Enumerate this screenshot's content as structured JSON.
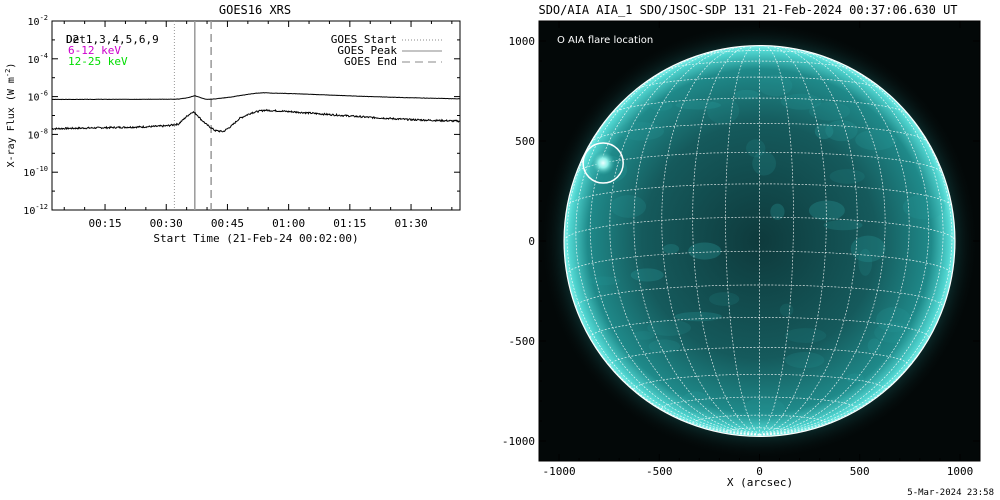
{
  "chart_data": [
    {
      "type": "line",
      "title": "GOES16 XRS",
      "xlabel": "Start Time (21-Feb-24 00:02:00)",
      "ylabel": "X-ray Flux (W m⁻²)",
      "ylabel_base": "X-ray Flux (W m",
      "ylabel_sup": "-2",
      "ylabel_end": ")",
      "ylog": true,
      "ylim_exp": [
        -12,
        -2
      ],
      "xlim_min": [
        2,
        102
      ],
      "xticks": [
        "00:15",
        "00:30",
        "00:45",
        "01:00",
        "01:15",
        "01:30"
      ],
      "xtick_min": [
        15,
        30,
        45,
        60,
        75,
        90
      ],
      "yticks": [
        {
          "base": "10",
          "exp": "-12",
          "v": -12
        },
        {
          "base": "10",
          "exp": "-10",
          "v": -10
        },
        {
          "base": "10",
          "exp": "-8",
          "v": -8
        },
        {
          "base": "10",
          "exp": "-6",
          "v": -6
        },
        {
          "base": "10",
          "exp": "-4",
          "v": -4
        },
        {
          "base": "10",
          "exp": "-2",
          "v": -2
        }
      ],
      "legend_left": [
        {
          "label": "Det1,3,4,5,6,9",
          "overlay": "D2",
          "color": "#000000"
        },
        {
          "label": "6-12 keV",
          "color": "#cc00cc"
        },
        {
          "label": "12-25 keV",
          "color": "#00dd00"
        }
      ],
      "legend_right": [
        {
          "label": "GOES Start",
          "style": "dotted"
        },
        {
          "label": "GOES Peak",
          "style": "solid"
        },
        {
          "label": "GOES End",
          "style": "dashed"
        }
      ],
      "vlines_min": {
        "start": 32,
        "peak": 37,
        "end": 41
      },
      "series": [
        {
          "key": "long",
          "x": [
            2,
            30,
            33,
            35.5,
            37,
            38,
            39,
            40,
            42,
            46,
            50,
            52,
            54,
            57,
            62,
            70,
            80,
            90,
            102
          ],
          "log_y": [
            -6.15,
            -6.14,
            -6.13,
            -6.05,
            -5.95,
            -6.02,
            -6.1,
            -6.15,
            -6.12,
            -6.02,
            -5.88,
            -5.82,
            -5.8,
            -5.82,
            -5.85,
            -5.92,
            -6.0,
            -6.06,
            -6.12
          ]
        },
        {
          "key": "short",
          "x": [
            2,
            25,
            30,
            33,
            35,
            36.5,
            37.5,
            38.5,
            40,
            42,
            44,
            46,
            48,
            51,
            54,
            57,
            62,
            70,
            80,
            90,
            102
          ],
          "log_y": [
            -7.7,
            -7.6,
            -7.55,
            -7.45,
            -7.05,
            -6.8,
            -6.95,
            -7.2,
            -7.5,
            -7.8,
            -7.85,
            -7.55,
            -7.15,
            -6.85,
            -6.72,
            -6.75,
            -6.82,
            -6.95,
            -7.1,
            -7.22,
            -7.3
          ]
        }
      ]
    },
    {
      "type": "scatter",
      "title": "SDO/AIA AIA_1 SDO/JSOC-SDP 131 21-Feb-2024 00:37:06.630 UT",
      "xlabel": "X (arcsec)",
      "ylabel": "",
      "xlim": [
        -1100,
        1100
      ],
      "ylim": [
        -1100,
        1100
      ],
      "xticks": [
        -1000,
        -500,
        0,
        500,
        1000
      ],
      "yticks": [
        -1000,
        -500,
        0,
        500,
        1000
      ],
      "legend": "O AIA flare location",
      "flare_location": {
        "x": -780,
        "y": 390,
        "radius": 100
      },
      "solar_radius": 975,
      "colors": {
        "disk": "#1a7c7c",
        "background": "#030808",
        "grid": "#ffffff"
      }
    }
  ],
  "footer_timestamp": "5-Mar-2024 23:58"
}
